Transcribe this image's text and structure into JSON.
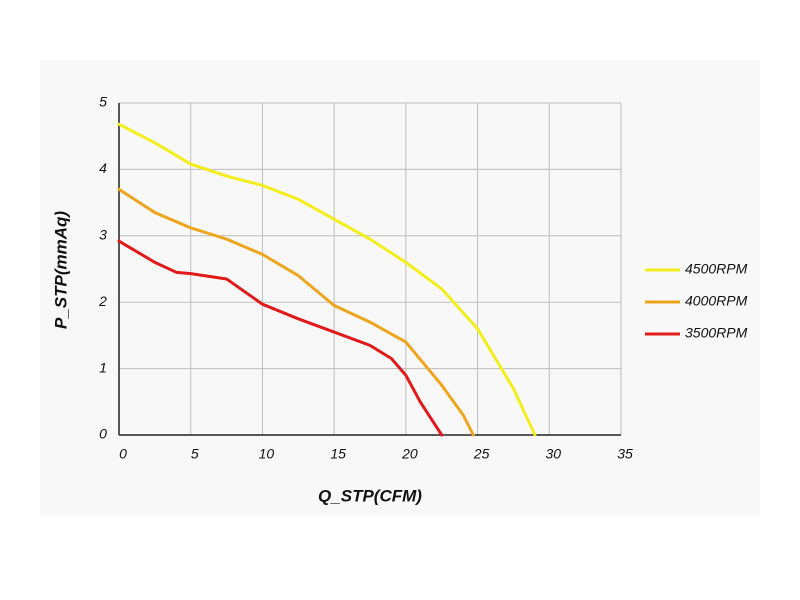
{
  "chart_data": {
    "type": "line",
    "x_label": "Q_STP(CFM)",
    "y_label": "P_STP(mmAq)",
    "xlim": [
      0,
      35
    ],
    "xticks": [
      0,
      5,
      10,
      15,
      20,
      25,
      30,
      35
    ],
    "ylim": [
      0,
      5
    ],
    "yticks": [
      0,
      1,
      2,
      3,
      4,
      5
    ],
    "grid": true,
    "legend": "right",
    "series": [
      {
        "name": "4500RPM",
        "color": "#f2ee1c",
        "x": [
          0,
          2.5,
          5,
          7.5,
          10,
          12.5,
          15,
          17.5,
          20,
          22.5,
          25,
          27.5,
          29
        ],
        "values": [
          4.68,
          4.4,
          4.08,
          3.9,
          3.76,
          3.55,
          3.25,
          2.95,
          2.6,
          2.2,
          1.6,
          0.7,
          0
        ]
      },
      {
        "name": "4000RPM",
        "color": "#eea51e",
        "x": [
          0,
          2.5,
          5,
          7.5,
          10,
          12.5,
          15,
          17.5,
          20,
          22.5,
          24,
          24.7
        ],
        "values": [
          3.7,
          3.35,
          3.12,
          2.95,
          2.72,
          2.4,
          1.95,
          1.7,
          1.4,
          0.75,
          0.3,
          0
        ]
      },
      {
        "name": "3500RPM",
        "color": "#e01a1a",
        "x": [
          0,
          2.5,
          4,
          5,
          7.5,
          10,
          12.5,
          15,
          17.5,
          19,
          20,
          21,
          22.5
        ],
        "values": [
          2.92,
          2.6,
          2.45,
          2.43,
          2.35,
          1.97,
          1.75,
          1.55,
          1.35,
          1.15,
          0.9,
          0.5,
          0
        ]
      }
    ]
  }
}
